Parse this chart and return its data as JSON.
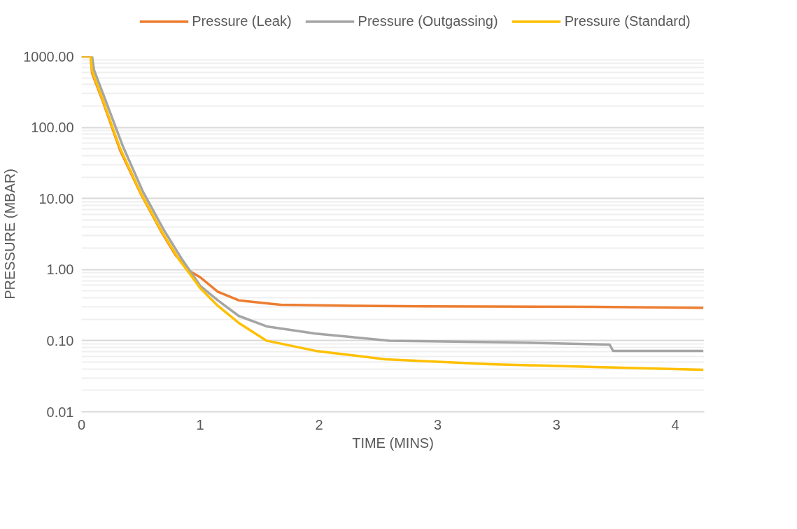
{
  "chart_data": {
    "type": "line",
    "xlabel": "TIME (MINS)",
    "ylabel": "PRESSURE (MBAR)",
    "log": "y",
    "grid": "y",
    "legend": "top",
    "marker": "none",
    "line_style": "solid",
    "xlim": [
      0,
      4.37
    ],
    "ylim": [
      0.01,
      1000
    ],
    "xticks": [
      {
        "value": 0,
        "label": "0"
      },
      {
        "value": 0.833,
        "label": "1"
      },
      {
        "value": 1.667,
        "label": "2"
      },
      {
        "value": 2.5,
        "label": "3"
      },
      {
        "value": 3.333,
        "label": "3"
      },
      {
        "value": 4.167,
        "label": "4"
      }
    ],
    "yticks": [
      {
        "value": 0.01,
        "label": "0.01"
      },
      {
        "value": 0.1,
        "label": "0.10"
      },
      {
        "value": 1,
        "label": "1.00"
      },
      {
        "value": 10,
        "label": "10.00"
      },
      {
        "value": 100,
        "label": "100.00"
      },
      {
        "value": 1000,
        "label": "1000.00"
      }
    ],
    "series": [
      {
        "name": "Pressure (Leak)",
        "color": "#ed7d31",
        "x": [
          0,
          0.064,
          0.074,
          0.147,
          0.27,
          0.417,
          0.564,
          0.66,
          0.76,
          0.833,
          0.956,
          1.103,
          1.299,
          1.397,
          1.9,
          2.4,
          3.6,
          4.363
        ],
        "values": [
          1000,
          1000,
          580,
          240,
          48,
          11.5,
          3.3,
          1.6,
          0.95,
          0.78,
          0.49,
          0.37,
          0.336,
          0.32,
          0.31,
          0.305,
          0.3,
          0.29
        ]
      },
      {
        "name": "Pressure (Outgassing)",
        "color": "#a5a5a5",
        "x": [
          0,
          0.074,
          0.088,
          0.162,
          0.289,
          0.431,
          0.578,
          0.7,
          0.833,
          0.956,
          1.103,
          1.299,
          1.642,
          1.887,
          2.162,
          3.0,
          3.706,
          3.73,
          4.363
        ],
        "values": [
          1000,
          1000,
          640,
          260,
          55,
          12.5,
          3.6,
          1.45,
          0.59,
          0.37,
          0.223,
          0.159,
          0.126,
          0.113,
          0.1,
          0.095,
          0.088,
          0.072,
          0.072
        ]
      },
      {
        "name": "Pressure (Standard)",
        "color": "#ffc000",
        "x": [
          0,
          0.064,
          0.074,
          0.147,
          0.27,
          0.417,
          0.564,
          0.686,
          0.76,
          0.833,
          0.956,
          1.103,
          1.299,
          1.642,
          2.132,
          2.868,
          3.603,
          4.363
        ],
        "values": [
          1000,
          1000,
          621,
          251,
          51,
          11.8,
          3.39,
          1.37,
          0.87,
          0.55,
          0.31,
          0.178,
          0.1,
          0.072,
          0.0547,
          0.0467,
          0.0427,
          0.039
        ]
      }
    ]
  }
}
